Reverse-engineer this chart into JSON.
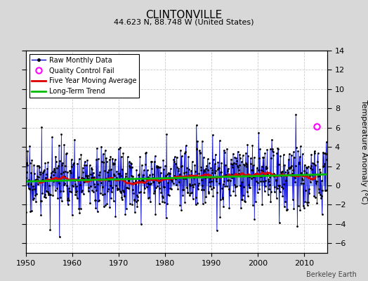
{
  "title": "CLINTONVILLE",
  "subtitle": "44.623 N, 88.748 W (United States)",
  "ylabel": "Temperature Anomaly (°C)",
  "credit": "Berkeley Earth",
  "xlim": [
    1950,
    2015
  ],
  "ylim": [
    -7,
    14
  ],
  "yticks": [
    -6,
    -4,
    -2,
    0,
    2,
    4,
    6,
    8,
    10,
    12,
    14
  ],
  "xticks": [
    1950,
    1960,
    1970,
    1980,
    1990,
    2000,
    2010
  ],
  "bg_color": "#d8d8d8",
  "plot_bg_color": "#ffffff",
  "grid_color": "#cccccc",
  "stem_color": "#6688ff",
  "line_color": "#0000cc",
  "dot_color": "#000000",
  "ma_color": "#dd0000",
  "trend_color": "#00bb00",
  "qc_fail_x": 2012.75,
  "qc_fail_y": 6.1,
  "seed": 17,
  "noise_std": 1.7,
  "trend_intercept": 0.35,
  "trend_slope": 0.012
}
